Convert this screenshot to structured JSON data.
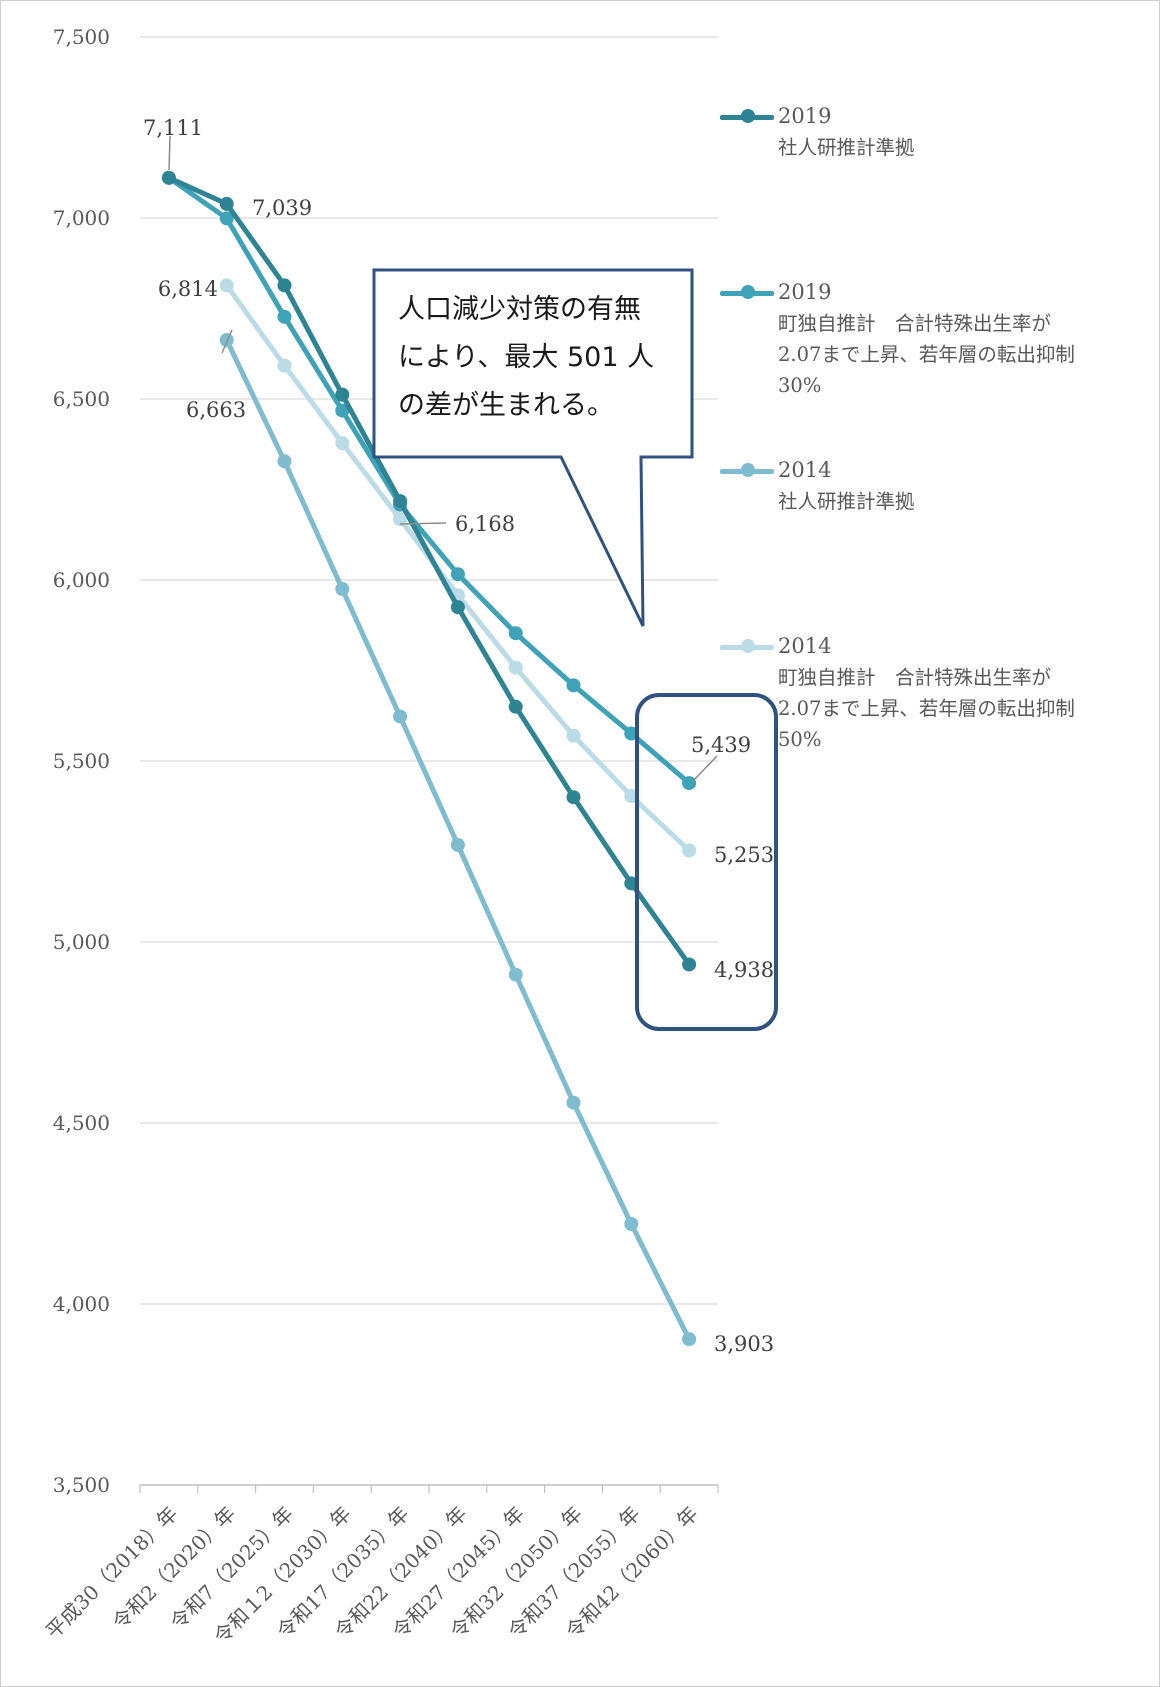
{
  "chart_data": {
    "type": "line",
    "categories": [
      "平成30（2018）年",
      "令和2（2020）年",
      "令和7（2025）年",
      "令和１2（2030）年",
      "令和17（2035）年",
      "令和22（2040）年",
      "令和27（2045）年",
      "令和32（2050）年",
      "令和37（2055）年",
      "令和42（2060）年"
    ],
    "ylim": [
      3500,
      7500
    ],
    "yticks": [
      "7,500",
      "7,000",
      "6,500",
      "6,000",
      "5,500",
      "5,000",
      "4,500",
      "4,000",
      "3,500"
    ],
    "ytick_values": [
      7500,
      7000,
      6500,
      6000,
      5500,
      5000,
      4500,
      4000,
      3500
    ],
    "grid": true,
    "legend_position": "right",
    "series": [
      {
        "name_line1": "2019",
        "name_line2": "社人研推計準拠",
        "color": "#2f8494",
        "values": [
          7111,
          7039,
          6814,
          6512,
          6218,
          5925,
          5650,
          5400,
          5162,
          4938
        ]
      },
      {
        "name_line1": "2019",
        "name_line2": "町独自推計　合計特殊出生率が2.07まで上昇、若年層の転出抑制30%",
        "color": "#3ea3b8",
        "values": [
          7111,
          6999,
          6727,
          6468,
          6208,
          6016,
          5853,
          5709,
          5576,
          5439
        ]
      },
      {
        "name_line1": "2014",
        "name_line2": "社人研推計準拠",
        "color": "#7fbcd0",
        "values": [
          null,
          6663,
          6328,
          5975,
          5623,
          5268,
          4910,
          4556,
          4221,
          3903
        ]
      },
      {
        "name_line1": "2014",
        "name_line2": "町独自推計　合計特殊出生率が2.07まで上昇、若年層の転出抑制50%",
        "color": "#bbdce6",
        "values": [
          null,
          6814,
          6592,
          6378,
          6168,
          5958,
          5758,
          5570,
          5403,
          5253
        ]
      }
    ],
    "data_labels": [
      {
        "text": "7,111"
      },
      {
        "text": "7,039"
      },
      {
        "text": "6,814"
      },
      {
        "text": "6,663"
      },
      {
        "text": "6,168"
      },
      {
        "text": "5,439"
      },
      {
        "text": "5,253"
      },
      {
        "text": "4,938"
      },
      {
        "text": "3,903"
      }
    ],
    "callout_lines": [
      "人口減少対策の有無",
      "により、最大 501 人",
      "の差が生まれる。"
    ]
  },
  "colors": {
    "grid": "#d9d9d9",
    "axis": "#bfbfbf",
    "callout": "#2f5280"
  }
}
